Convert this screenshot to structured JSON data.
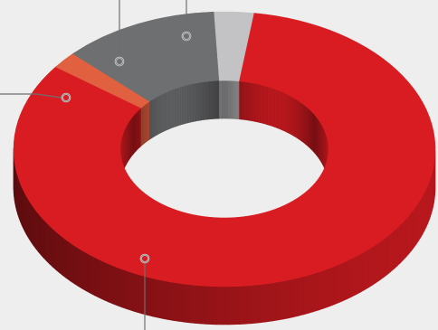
{
  "chart_data": {
    "type": "pie",
    "style": "3d-donut",
    "title": "",
    "series": [
      {
        "label": "",
        "value": 83,
        "color": "#d91c22"
      },
      {
        "label": "",
        "value": 2,
        "color": "#e06040"
      },
      {
        "label": "",
        "value": 12,
        "color": "#6e6f71"
      },
      {
        "label": "",
        "value": 3,
        "color": "#c3c3c5"
      }
    ]
  }
}
